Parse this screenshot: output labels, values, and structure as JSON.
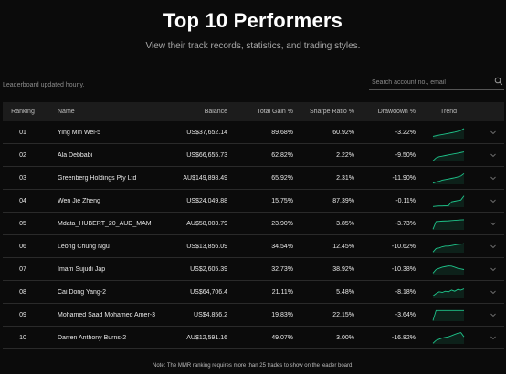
{
  "header": {
    "title": "Top 10 Performers",
    "subtitle": "View their track records, statistics, and trading styles."
  },
  "updated_text": "Leaderboard updated hourly.",
  "search": {
    "placeholder": "Search account no., email",
    "icon": "search-icon"
  },
  "columns": {
    "ranking": "Ranking",
    "name": "Name",
    "balance": "Balance",
    "total_gain": "Total Gain %",
    "sharpe": "Sharpe Ratio %",
    "drawdown": "Drawdown %",
    "trend": "Trend"
  },
  "colors": {
    "accent": "#1ec48a",
    "background": "#0b0b0b",
    "header_bg": "#1c1c1c"
  },
  "rows": [
    {
      "rank": "01",
      "name": "Ying Min Wei-5",
      "balance": "US$37,652.14",
      "gain": "89.68%",
      "sharpe": "60.92%",
      "drawdown": "-3.22%",
      "trend": [
        0.2,
        0.25,
        0.3,
        0.35,
        0.4,
        0.45,
        0.5,
        0.55,
        0.62,
        0.7,
        0.85
      ]
    },
    {
      "rank": "02",
      "name": "Ala Debbabi",
      "balance": "US$66,655.73",
      "gain": "62.82%",
      "sharpe": "2.22%",
      "drawdown": "-9.50%",
      "trend": [
        0.05,
        0.3,
        0.4,
        0.45,
        0.5,
        0.55,
        0.6,
        0.65,
        0.7,
        0.75,
        0.8
      ]
    },
    {
      "rank": "03",
      "name": "Greenberg Holdings Pty Ltd",
      "balance": "AU$149,898.49",
      "gain": "65.92%",
      "sharpe": "2.31%",
      "drawdown": "-11.90%",
      "trend": [
        0.1,
        0.2,
        0.25,
        0.35,
        0.4,
        0.45,
        0.5,
        0.55,
        0.62,
        0.7,
        0.9
      ]
    },
    {
      "rank": "04",
      "name": "Wen Jie Zheng",
      "balance": "US$24,049.88",
      "gain": "15.75%",
      "sharpe": "87.39%",
      "drawdown": "-0.11%",
      "trend": [
        0.05,
        0.08,
        0.1,
        0.1,
        0.12,
        0.12,
        0.45,
        0.5,
        0.55,
        0.6,
        0.95
      ]
    },
    {
      "rank": "05",
      "name": "Mdata_HUBERT_20_AUD_MAM",
      "balance": "AU$58,003.79",
      "gain": "23.90%",
      "sharpe": "3.85%",
      "drawdown": "-3.73%",
      "trend": [
        0.05,
        0.7,
        0.72,
        0.74,
        0.75,
        0.76,
        0.78,
        0.8,
        0.82,
        0.84,
        0.85
      ]
    },
    {
      "rank": "06",
      "name": "Leong Chung Ngu",
      "balance": "US$13,856.09",
      "gain": "34.54%",
      "sharpe": "12.45%",
      "drawdown": "-10.62%",
      "trend": [
        0.05,
        0.35,
        0.4,
        0.5,
        0.55,
        0.55,
        0.6,
        0.65,
        0.7,
        0.72,
        0.75
      ]
    },
    {
      "rank": "07",
      "name": "Imam Sujudi Jap",
      "balance": "US$2,605.39",
      "gain": "32.73%",
      "sharpe": "38.92%",
      "drawdown": "-10.38%",
      "trend": [
        0.2,
        0.5,
        0.6,
        0.7,
        0.75,
        0.8,
        0.78,
        0.7,
        0.6,
        0.55,
        0.5
      ]
    },
    {
      "rank": "08",
      "name": "Cai Dong Yang-2",
      "balance": "US$64,706.4",
      "gain": "21.11%",
      "sharpe": "5.48%",
      "drawdown": "-8.18%",
      "trend": [
        0.2,
        0.4,
        0.55,
        0.5,
        0.6,
        0.55,
        0.7,
        0.6,
        0.75,
        0.7,
        0.8
      ]
    },
    {
      "rank": "09",
      "name": "Mohamed Saad Mohamed Amer-3",
      "balance": "US$4,856.2",
      "gain": "19.83%",
      "sharpe": "22.15%",
      "drawdown": "-3.64%",
      "trend": [
        0.05,
        0.9,
        0.9,
        0.9,
        0.9,
        0.9,
        0.9,
        0.9,
        0.9,
        0.9,
        0.9
      ]
    },
    {
      "rank": "10",
      "name": "Darren Anthony Burns-2",
      "balance": "AU$12,591.16",
      "gain": "49.07%",
      "sharpe": "3.00%",
      "drawdown": "-16.82%",
      "trend": [
        0.05,
        0.3,
        0.4,
        0.5,
        0.55,
        0.6,
        0.7,
        0.8,
        0.9,
        0.95,
        0.6
      ]
    }
  ],
  "footer_note": "Note: The MMR ranking requires more than 25 trades to show on the leader board."
}
